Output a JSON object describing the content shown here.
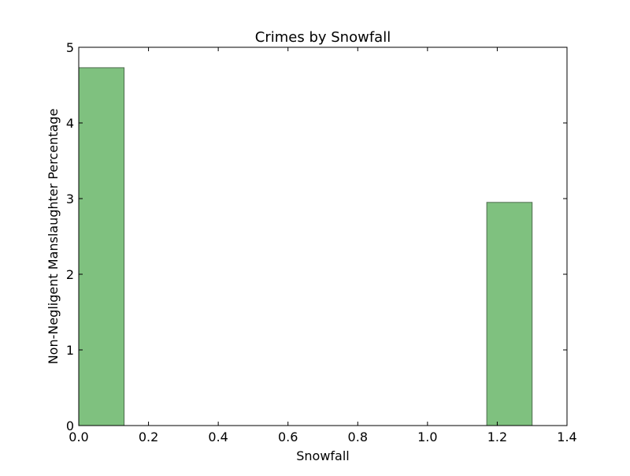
{
  "chart_data": {
    "type": "bar",
    "title": "Crimes by Snowfall",
    "xlabel": "Snowfall",
    "ylabel": "Non-Negligent Manslaughter Percentage",
    "xlim": [
      0.0,
      1.4
    ],
    "ylim": [
      0,
      5
    ],
    "x_ticks": [
      "0.0",
      "0.2",
      "0.4",
      "0.6",
      "0.8",
      "1.0",
      "1.2",
      "1.4"
    ],
    "x_tick_values": [
      0.0,
      0.2,
      0.4,
      0.6,
      0.8,
      1.0,
      1.2,
      1.4
    ],
    "y_ticks": [
      "0",
      "1",
      "2",
      "3",
      "4",
      "5"
    ],
    "y_tick_values": [
      0,
      1,
      2,
      3,
      4,
      5
    ],
    "grid": false,
    "bars": [
      {
        "x_start": 0.0,
        "x_end": 0.13,
        "value": 4.73
      },
      {
        "x_start": 1.17,
        "x_end": 1.3,
        "value": 2.95
      }
    ],
    "colors": {
      "bar_fill": "#7fc17f",
      "bar_edge": "#4d6b4d",
      "axis": "#000000"
    }
  }
}
